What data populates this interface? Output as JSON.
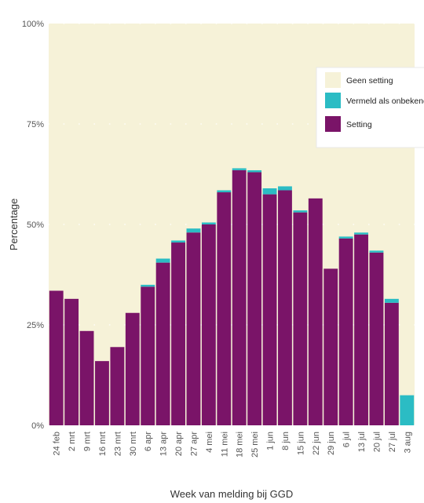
{
  "chart_data": {
    "type": "bar",
    "stacked": true,
    "xlabel": "Week van melding bij GGD",
    "ylabel": "Percentage",
    "ylim": [
      0,
      100
    ],
    "yticks": [
      "0%",
      "25%",
      "50%",
      "75%",
      "100%"
    ],
    "categories": [
      "24 feb",
      "2 mrt",
      "9 mrt",
      "16 mrt",
      "23 mrt",
      "30 mrt",
      "6 apr",
      "13 apr",
      "20 apr",
      "27 apr",
      "4 mei",
      "11 mei",
      "18 mei",
      "25 mei",
      "1 jun",
      "8 jun",
      "15 jun",
      "22 jun",
      "29 jun",
      "6 jul",
      "13 jul",
      "20 jul",
      "27 jul",
      "3 aug"
    ],
    "series": [
      {
        "name": "Setting",
        "color": "#7a1468",
        "values": [
          33.5,
          31.5,
          23.5,
          16,
          19.5,
          28,
          34.5,
          40.5,
          45.5,
          48,
          50,
          58,
          63.5,
          63,
          57.5,
          58.5,
          53,
          56.5,
          39,
          46.5,
          47.5,
          43,
          30.5,
          0
        ]
      },
      {
        "name": "Vermeld als onbekend",
        "color": "#2bbcc4",
        "values": [
          0,
          0,
          0,
          0,
          0,
          0,
          0.5,
          1,
          0.5,
          1,
          0.5,
          0.5,
          0.5,
          0.5,
          1.5,
          1,
          0.5,
          0,
          0,
          0.5,
          0.5,
          0.5,
          1,
          7.5
        ]
      },
      {
        "name": "Geen setting",
        "color": "#f6f2d8",
        "values": [
          66.5,
          68.5,
          76.5,
          84,
          80.5,
          72,
          65,
          58.5,
          54,
          51,
          49.5,
          41.5,
          36,
          36.5,
          41,
          40.5,
          46.5,
          43.5,
          61,
          53,
          52,
          56.5,
          68.5,
          92.5
        ]
      }
    ],
    "legend": {
      "position": "right",
      "entries": [
        "Geen setting",
        "Vermeld als onbekend",
        "Setting"
      ]
    },
    "grid": true
  }
}
